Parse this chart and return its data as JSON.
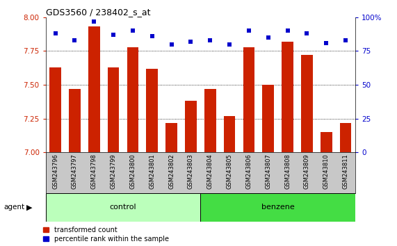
{
  "title": "GDS3560 / 238402_s_at",
  "samples": [
    "GSM243796",
    "GSM243797",
    "GSM243798",
    "GSM243799",
    "GSM243800",
    "GSM243801",
    "GSM243802",
    "GSM243803",
    "GSM243804",
    "GSM243805",
    "GSM243806",
    "GSM243807",
    "GSM243808",
    "GSM243809",
    "GSM243810",
    "GSM243811"
  ],
  "red_values": [
    7.63,
    7.47,
    7.93,
    7.63,
    7.78,
    7.62,
    7.22,
    7.38,
    7.47,
    7.27,
    7.78,
    7.5,
    7.82,
    7.72,
    7.15,
    7.22
  ],
  "blue_values": [
    88,
    83,
    97,
    87,
    90,
    86,
    80,
    82,
    83,
    80,
    90,
    85,
    90,
    88,
    81,
    83
  ],
  "ylim_left": [
    7.0,
    8.0
  ],
  "ylim_right": [
    0,
    100
  ],
  "yticks_left": [
    7.0,
    7.25,
    7.5,
    7.75,
    8.0
  ],
  "yticks_right": [
    0,
    25,
    50,
    75,
    100
  ],
  "control_count": 8,
  "benzene_count": 8,
  "bar_color": "#CC2200",
  "dot_color": "#0000CC",
  "control_color": "#BBFFBB",
  "benzene_color": "#44DD44",
  "sample_bg_color": "#C8C8C8",
  "agent_label": "agent",
  "legend_red": "transformed count",
  "legend_blue": "percentile rank within the sample",
  "bar_width": 0.6
}
